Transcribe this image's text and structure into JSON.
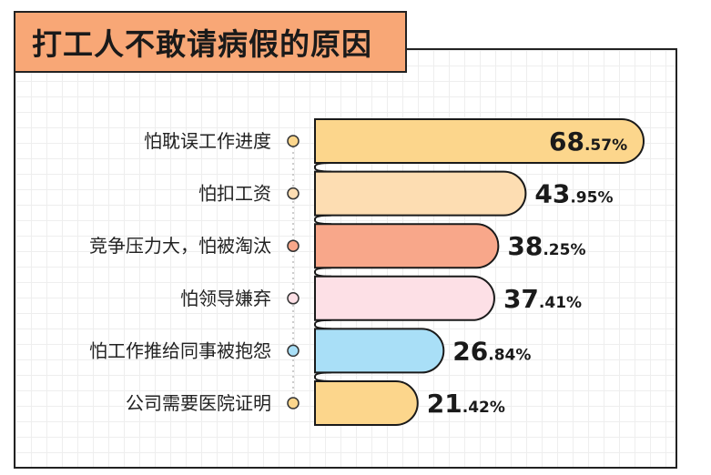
{
  "chart_data": {
    "type": "bar",
    "orientation": "horizontal",
    "title": "打工人不敢请病假的原因",
    "categories": [
      "怕耽误工作进度",
      "怕扣工资",
      "竞争压力大，怕被淘汰",
      "怕领导嫌弃",
      "怕工作推给同事被抱怨",
      "公司需要医院证明"
    ],
    "values": [
      68.57,
      43.95,
      38.25,
      37.41,
      26.84,
      21.42
    ],
    "value_labels": [
      {
        "int": "68",
        "dec": ".57%"
      },
      {
        "int": "43",
        "dec": ".95%"
      },
      {
        "int": "38",
        "dec": ".25%"
      },
      {
        "int": "37",
        "dec": ".41%"
      },
      {
        "int": "26",
        "dec": ".84%"
      },
      {
        "int": "21",
        "dec": ".42%"
      }
    ],
    "colors": [
      "#fcd68c",
      "#fdddb2",
      "#f8a78a",
      "#fde0e6",
      "#a9dff7",
      "#fcd68c"
    ],
    "dot_colors": [
      "#fcd68c",
      "#fdddb2",
      "#f8a78a",
      "#fde0e6",
      "#a9dff7",
      "#fcd68c"
    ],
    "xlim": [
      0,
      70
    ],
    "grid": true,
    "legend": "none"
  }
}
